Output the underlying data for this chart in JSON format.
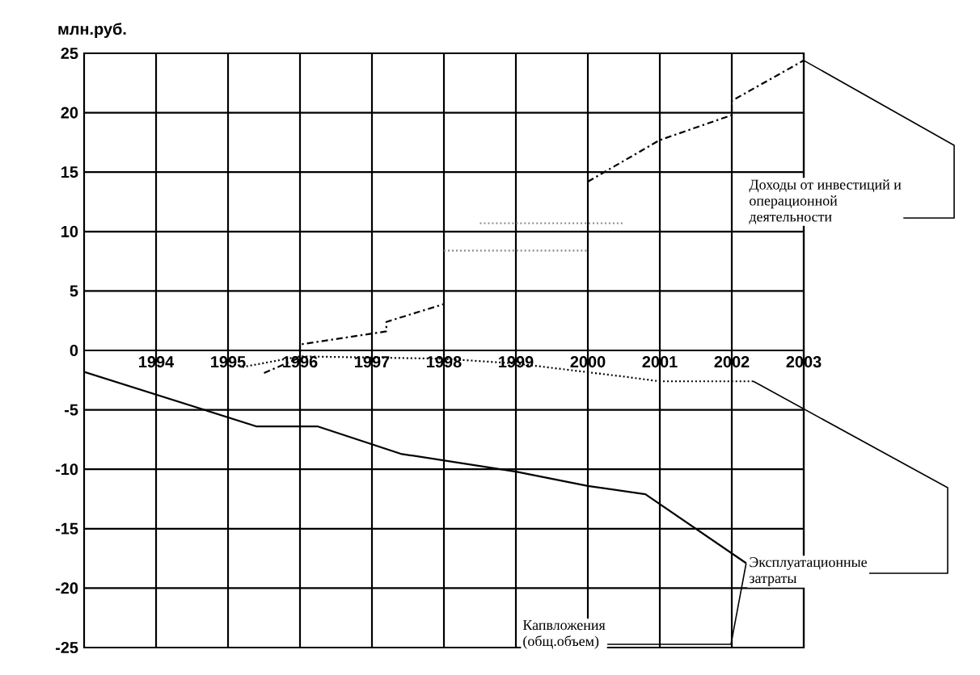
{
  "chart_data": {
    "type": "line",
    "ylabel": "млн.руб.",
    "xlim": [
      1993,
      2003
    ],
    "xticks": [
      1994,
      1995,
      1996,
      1997,
      1998,
      1999,
      2000,
      2001,
      2002,
      2003
    ],
    "ylim": [
      -25,
      25
    ],
    "yticks": [
      -25,
      -20,
      -15,
      -10,
      -5,
      0,
      5,
      10,
      15,
      20,
      25
    ],
    "grid": true,
    "series": [
      {
        "color": "#000000",
        "line_style": "solid",
        "x": [
          1993,
          1995.4,
          1996.25,
          1997.4,
          1999,
          2000,
          2000.8,
          2002.2
        ],
        "values": [
          -1.8,
          -6.4,
          -6.4,
          -8.7,
          -10.2,
          -11.4,
          -12.1,
          -17.9
        ]
      },
      {
        "color": "#000000",
        "line_style": "dashed",
        "x": [
          1995.5,
          1996,
          1996,
          1997.2,
          1997.2,
          1998,
          1999,
          2000,
          2001,
          2002,
          2002,
          2003
        ],
        "values": [
          -1.9,
          -0.6,
          0.5,
          1.6,
          2.4,
          3.9,
          null,
          14.2,
          17.7,
          19.8,
          21.0,
          24.4
        ]
      },
      {
        "color": "#000000",
        "line_style": "dotted",
        "x": [
          1995.2,
          1996,
          1998,
          1999,
          2000.5,
          2001,
          2002.3
        ],
        "values": [
          -1.4,
          -0.5,
          -0.7,
          -1.1,
          -2.2,
          -2.6,
          -2.6
        ]
      },
      {
        "color": "#888888",
        "line_style": "dotted",
        "x": [
          1998.5,
          2000.5
        ],
        "values": [
          10.7,
          10.7
        ]
      },
      {
        "color": "#888888",
        "line_style": "dotted",
        "x": [
          1998,
          2000
        ],
        "values": [
          8.4,
          8.4
        ]
      }
    ],
    "annotations": [
      {
        "text": "Доходы от инвестиций и операционной деятельности",
        "x": 2003,
        "y": 24.4
      },
      {
        "text": "Эксплуатационные затраты",
        "x": 2002.3,
        "y": -2.6
      },
      {
        "text": "Капвложения (общ.объем)",
        "x": 2002.2,
        "y": -17.9
      }
    ]
  }
}
